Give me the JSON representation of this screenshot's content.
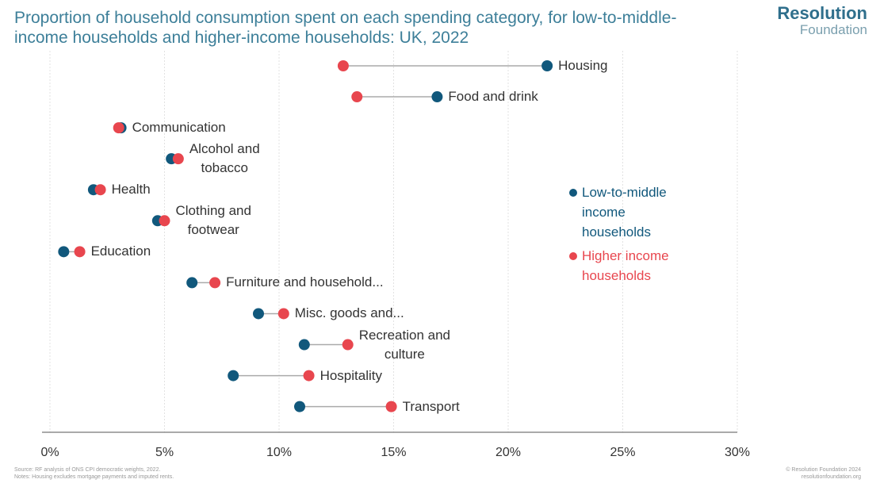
{
  "chart_data": {
    "type": "dumbbell",
    "title": "Proportion of household consumption spent on each spending category, for low-to-middle-income households and higher-income households: UK, 2022",
    "categories": [
      "Housing",
      "Food and drink",
      "Communication",
      "Alcohol and\ntobacco",
      "Health",
      "Clothing and\nfootwear",
      "Education",
      "Furniture and household...",
      "Misc. goods and...",
      "Recreation and\nculture",
      "Hospitality",
      "Transport"
    ],
    "series": [
      {
        "name": "Low-to-middle income households",
        "color": "#11587c",
        "values": [
          21.7,
          16.9,
          3.1,
          5.3,
          1.9,
          4.7,
          0.6,
          6.2,
          9.1,
          11.1,
          8.0,
          10.9
        ]
      },
      {
        "name": "Higher income households",
        "color": "#e8464e",
        "values": [
          12.8,
          13.4,
          3.0,
          5.6,
          2.2,
          5.0,
          1.3,
          7.2,
          10.2,
          13.0,
          11.3,
          14.9
        ]
      }
    ],
    "xlim": [
      0,
      30
    ],
    "xticks": [
      {
        "value": 0,
        "label": "0%"
      },
      {
        "value": 5,
        "label": "5%"
      },
      {
        "value": 10,
        "label": "10%"
      },
      {
        "value": 15,
        "label": "15%"
      },
      {
        "value": 20,
        "label": "20%"
      },
      {
        "value": 25,
        "label": "25%"
      },
      {
        "value": 30,
        "label": "30%"
      }
    ],
    "grid": true,
    "source": "Source: RF analysis of ONS CPI democratic weights, 2022.",
    "notes": "Notes: Housing excludes mortgage payments and imputed rents.",
    "brand": "Resolution",
    "brand_sub": "Foundation",
    "copyright": "© Resolution Foundation 2024",
    "website": "resolutionfoundation.org"
  }
}
